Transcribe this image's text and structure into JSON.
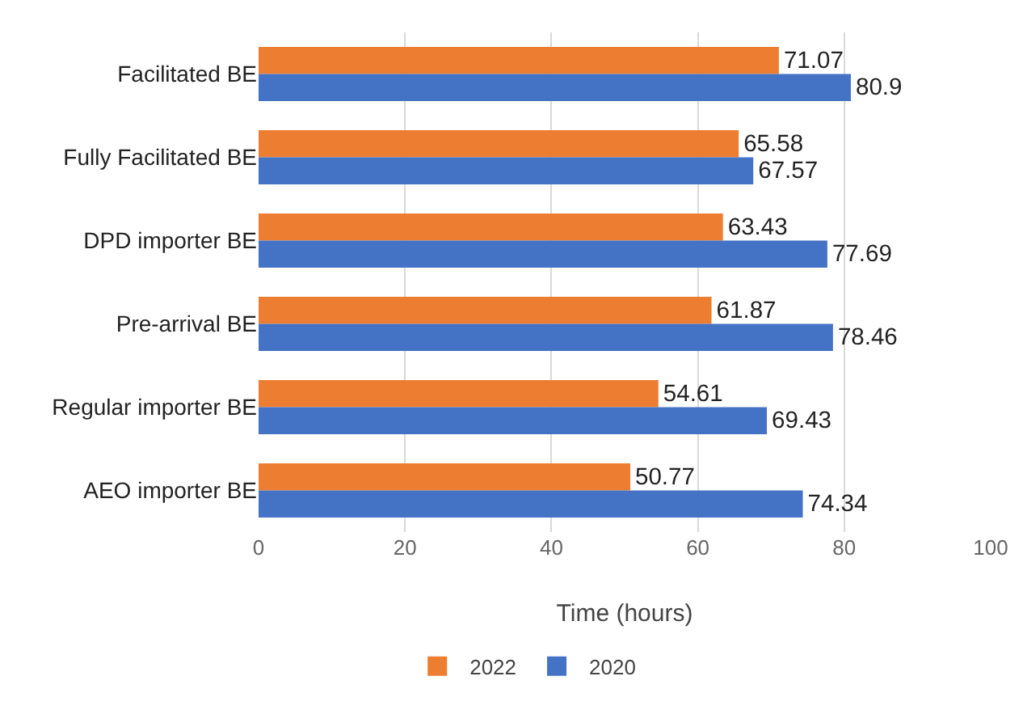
{
  "chart_data": {
    "type": "bar",
    "orientation": "horizontal",
    "xlabel": "Time (hours)",
    "categories": [
      "Facilitated BE",
      "Fully Facilitated BE",
      "DPD importer BE",
      "Pre-arrival BE",
      "Regular importer BE",
      "AEO importer BE"
    ],
    "series": [
      {
        "name": "2022",
        "color": "#ed7d31",
        "values": [
          71.07,
          65.58,
          63.43,
          61.87,
          54.61,
          50.77
        ]
      },
      {
        "name": "2020",
        "color": "#4472c4",
        "values": [
          80.9,
          67.57,
          77.69,
          78.46,
          69.43,
          74.34
        ]
      }
    ],
    "xlim": [
      0,
      100
    ],
    "xticks": [
      0,
      20,
      40,
      60,
      80,
      100
    ],
    "grid": "x",
    "legend": "bottom",
    "data_labels": true
  }
}
